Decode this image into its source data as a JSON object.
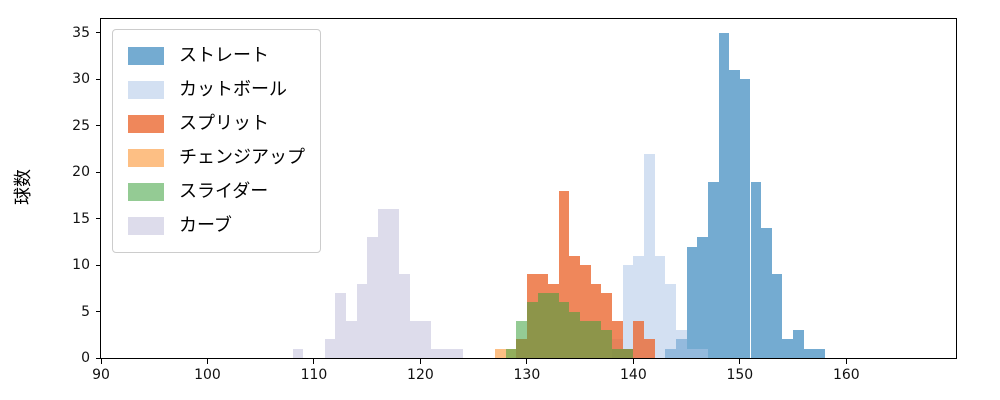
{
  "chart_data": {
    "type": "histogram",
    "title": "",
    "xlabel": "",
    "ylabel": "球数",
    "xlim": [
      90,
      170.3
    ],
    "ylim": [
      0,
      36.5
    ],
    "x_ticks": [
      90,
      100,
      110,
      120,
      130,
      140,
      150,
      160
    ],
    "y_ticks": [
      0,
      5,
      10,
      15,
      20,
      25,
      30,
      35
    ],
    "bin_width": 1,
    "grid": false,
    "legend_position": "upper left",
    "series": [
      {
        "name": "ストレート",
        "color": "rgba(31,119,180,0.62)",
        "start": 143,
        "counts": [
          1,
          2,
          12,
          13,
          19,
          35,
          31,
          30,
          19,
          14,
          9,
          2,
          3,
          1,
          1
        ]
      },
      {
        "name": "カットボール",
        "color": "rgba(174,199,232,0.55)",
        "start": 138,
        "counts": [
          2,
          10,
          11,
          22,
          11,
          8,
          3,
          1,
          1
        ]
      },
      {
        "name": "スプリット",
        "color": "rgba(235,105,50,0.8)",
        "start": 129,
        "counts": [
          2,
          9,
          9,
          8,
          18,
          11,
          10,
          8,
          7,
          4,
          1,
          4,
          2
        ]
      },
      {
        "name": "チェンジアップ",
        "color": "rgba(253,180,110,0.85)",
        "start": 127,
        "counts": [
          1,
          1
        ]
      },
      {
        "name": "スライダー",
        "color": "rgba(60,160,60,0.55)",
        "start": 128,
        "counts": [
          1,
          4,
          6,
          7,
          7,
          6,
          5,
          4,
          4,
          3,
          1,
          1
        ]
      },
      {
        "name": "カーブ",
        "color": "rgba(180,178,210,0.45)",
        "start": 108,
        "counts": [
          1,
          0,
          0,
          2,
          7,
          4,
          8,
          13,
          16,
          16,
          9,
          4,
          4,
          1,
          1,
          1
        ]
      }
    ]
  }
}
